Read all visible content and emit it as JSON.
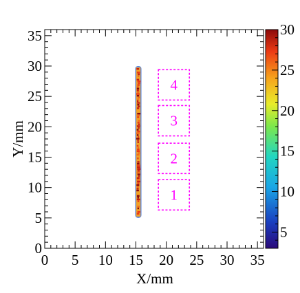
{
  "chart_data": {
    "type": "heatmap",
    "xlabel": "X/mm",
    "ylabel": "Y/mm",
    "xlim": [
      0,
      36
    ],
    "ylim": [
      0,
      36
    ],
    "x_ticks": [
      0,
      5,
      10,
      15,
      20,
      25,
      30,
      35
    ],
    "y_ticks": [
      0,
      5,
      10,
      15,
      20,
      25,
      30,
      35
    ],
    "colorbar": {
      "min": 3,
      "max": 30,
      "ticks": [
        5,
        10,
        15,
        20,
        25,
        30
      ],
      "palette": "rainbow"
    },
    "track": {
      "x": 15.4,
      "y_start": 5,
      "y_end": 30,
      "count_range": [
        20,
        30
      ]
    },
    "regions": [
      {
        "label": "1",
        "x0": 18.7,
        "x1": 23.8,
        "y0": 6.3,
        "y1": 11.3,
        "color": "#ff00ff"
      },
      {
        "label": "2",
        "x0": 18.7,
        "x1": 23.8,
        "y0": 12.3,
        "y1": 17.3,
        "color": "#ff00ff"
      },
      {
        "label": "3",
        "x0": 18.7,
        "x1": 23.8,
        "y0": 18.5,
        "y1": 23.5,
        "color": "#ff00ff"
      },
      {
        "label": "4",
        "x0": 18.7,
        "x1": 23.8,
        "y0": 24.4,
        "y1": 29.4,
        "color": "#ff00ff"
      }
    ]
  }
}
